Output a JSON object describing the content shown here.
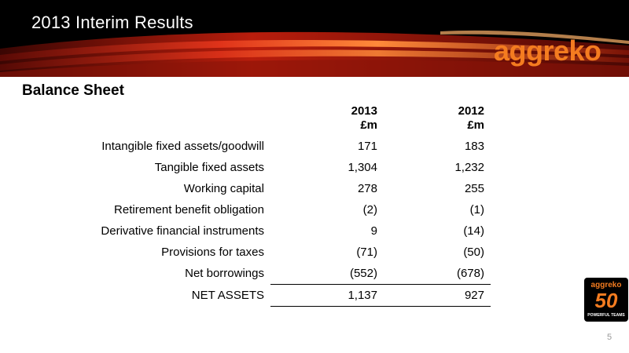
{
  "header": {
    "title": "2013 Interim Results",
    "logo": "aggreko",
    "colors": {
      "background": "#000000",
      "accent": "#f47c20",
      "swoosh": "#c8200f"
    }
  },
  "section": {
    "title": "Balance Sheet"
  },
  "table": {
    "columns": [
      {
        "year": "2013",
        "unit": "£m"
      },
      {
        "year": "2012",
        "unit": "£m"
      }
    ],
    "rows": [
      {
        "label": "Intangible fixed assets/goodwill",
        "v2013": "171",
        "v2012": "183"
      },
      {
        "label": "Tangible fixed assets",
        "v2013": "1,304",
        "v2012": "1,232"
      },
      {
        "label": "Working capital",
        "v2013": "278",
        "v2012": "255"
      },
      {
        "label": "Retirement benefit obligation",
        "v2013": "(2)",
        "v2012": "(1)"
      },
      {
        "label": "Derivative financial instruments",
        "v2013": "9",
        "v2012": "(14)"
      },
      {
        "label": "Provisions for taxes",
        "v2013": "(71)",
        "v2012": "(50)"
      },
      {
        "label": "Net borrowings",
        "v2013": "(552)",
        "v2012": "(678)"
      }
    ],
    "total": {
      "label": "NET ASSETS",
      "v2013": "1,137",
      "v2012": "927"
    }
  },
  "badge": {
    "name": "aggreko",
    "number": "50",
    "tagline": "POWERFUL TEAMS"
  },
  "footer": {
    "page_number": "5"
  }
}
